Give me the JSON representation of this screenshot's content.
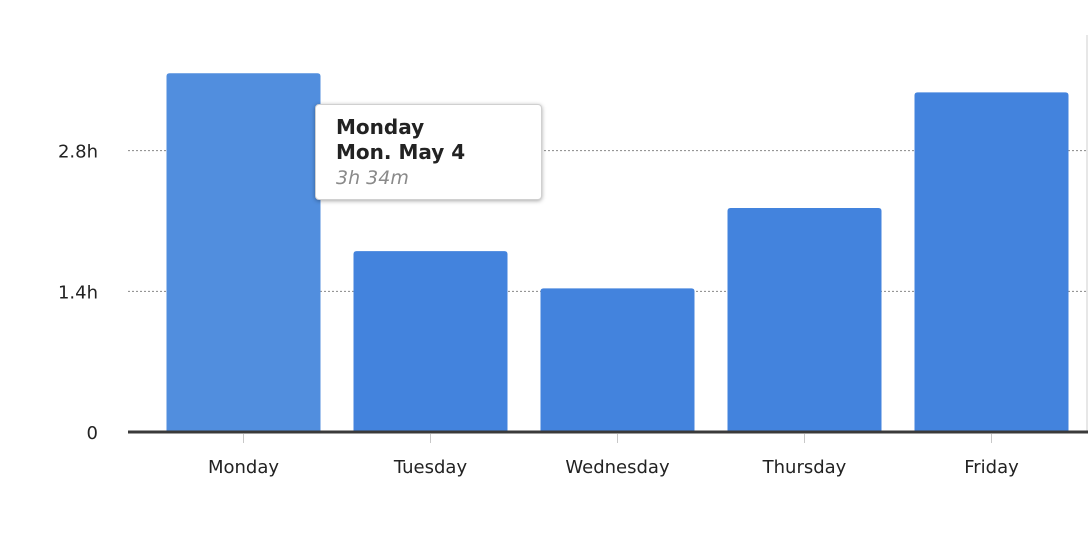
{
  "chart_data": {
    "type": "bar",
    "categories": [
      "Monday",
      "Tuesday",
      "Wednesday",
      "Thursday",
      "Friday"
    ],
    "values": [
      3.57,
      1.8,
      1.43,
      2.23,
      3.38
    ],
    "yticks": [
      {
        "value": 0,
        "label": "0"
      },
      {
        "value": 1.4,
        "label": "1.4h"
      },
      {
        "value": 2.8,
        "label": "2.8h"
      }
    ],
    "ylim": [
      0,
      4.2
    ],
    "grid": true,
    "colors": {
      "bar": "#4383dd",
      "bar_hover": "#518ede",
      "axis": "#3a3a3a",
      "grid": "#888888"
    }
  },
  "tooltip": {
    "title": "Monday",
    "date": "Mon. May 4",
    "value": "3h 34m"
  }
}
